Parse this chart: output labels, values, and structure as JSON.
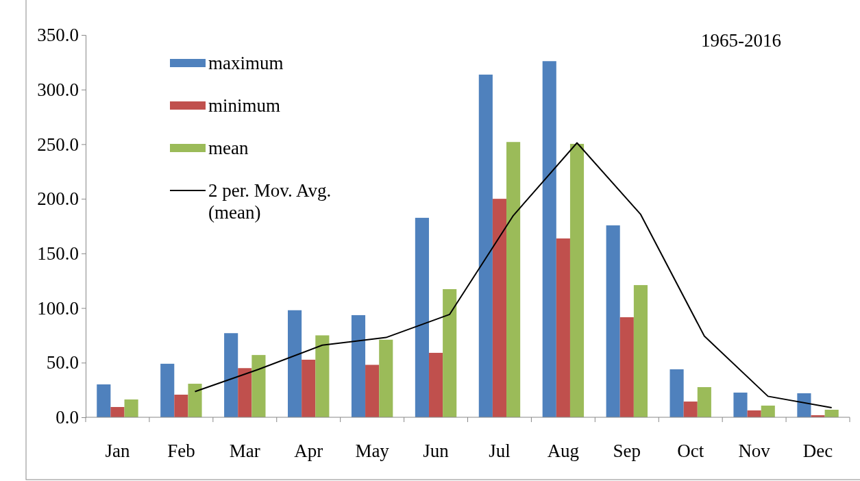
{
  "chart_data": {
    "type": "bar",
    "categories": [
      "Jan",
      "Feb",
      "Mar",
      "Apr",
      "May",
      "Jun",
      "Jul",
      "Aug",
      "Sep",
      "Oct",
      "Nov",
      "Dec"
    ],
    "series": [
      {
        "name": "maximum",
        "color": "#4f81bd",
        "values": [
          30.1,
          49,
          77,
          98,
          93.5,
          182.6,
          313.7,
          326,
          175.7,
          43.9,
          22.6,
          22
        ]
      },
      {
        "name": "minimum",
        "color": "#c0504d",
        "values": [
          9.4,
          20.7,
          45,
          52.7,
          48,
          59,
          200,
          163.7,
          91.6,
          14.4,
          6.3,
          1.9
        ]
      },
      {
        "name": "mean",
        "color": "#9bbb59",
        "values": [
          16.3,
          30.7,
          57,
          75,
          71,
          117.3,
          252,
          250.3,
          121,
          27.6,
          10.7,
          6.9
        ]
      },
      {
        "name": "2 per. Mov. Avg. (mean)",
        "type": "line",
        "color": "#000000",
        "values": [
          null,
          23.5,
          43.9,
          66,
          73,
          94.2,
          184.7,
          251.2,
          185.7,
          74.3,
          19.2,
          8.8
        ]
      }
    ],
    "ylim": [
      0,
      350
    ],
    "yticks": [
      {
        "value": 0,
        "label": "0.0"
      },
      {
        "value": 50,
        "label": "50.0"
      },
      {
        "value": 100,
        "label": "100.0"
      },
      {
        "value": 150,
        "label": "150.0"
      },
      {
        "value": 200,
        "label": "200.0"
      },
      {
        "value": 250,
        "label": "250.0"
      },
      {
        "value": 300,
        "label": "300.0"
      },
      {
        "value": 350,
        "label": "350.0"
      }
    ],
    "grid": false,
    "legend": "top left",
    "marker": "none",
    "line_style": "solid",
    "annotations": [
      "1965-2016"
    ]
  }
}
